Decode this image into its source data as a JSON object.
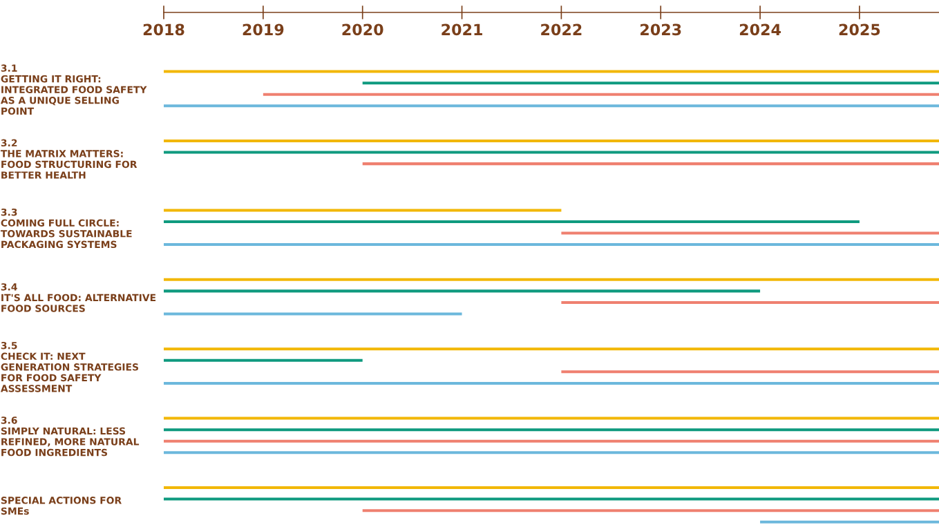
{
  "chart_data": {
    "type": "bar",
    "orientation": "horizontal",
    "categories": [
      "3.1\nGETTING IT RIGHT:\nINTEGRATED FOOD SAFETY\nAS A UNIQUE SELLING\nPOINT",
      "3.2\nTHE MATRIX MATTERS:\nFOOD STRUCTURING FOR\nBETTER HEALTH",
      "3.3\nCOMING FULL CIRCLE:\nTOWARDS SUSTAINABLE\nPACKAGING SYSTEMS",
      "3.4\nIT'S ALL FOOD: ALTERNATIVE\nFOOD SOURCES",
      "3.5\nCHECK IT: NEXT\nGENERATION STRATEGIES\nFOR FOOD SAFETY\nASSESSMENT",
      "3.6\nSIMPLY NATURAL: LESS\nREFINED, MORE NATURAL\nFOOD INGREDIENTS",
      "SPECIAL ACTIONS FOR\nSMEs"
    ],
    "series": [
      {
        "color": "#f2b705",
        "base": [
          2018,
          2018,
          2018,
          2018,
          2018,
          2018,
          2018
        ],
        "values": [
          7.8,
          7.8,
          4,
          7.8,
          7.8,
          7.8,
          7.8
        ]
      },
      {
        "color": "#0f9a7f",
        "base": [
          2020,
          2018,
          2018,
          2018,
          2018,
          2018,
          2018
        ],
        "values": [
          5.8,
          7.8,
          7,
          6,
          2,
          7.8,
          7.8
        ]
      },
      {
        "color": "#ef8070",
        "base": [
          2019,
          2020,
          2022,
          2022,
          2022,
          2018,
          2020
        ],
        "values": [
          6.8,
          5.8,
          3.8,
          3.8,
          3.8,
          7.8,
          5.8
        ]
      },
      {
        "color": "#6cb8dc",
        "base": [
          2018,
          null,
          2018,
          2018,
          2018,
          2018,
          2024
        ],
        "values": [
          7.8,
          null,
          7.8,
          3,
          7.8,
          7.8,
          1.8
        ]
      }
    ],
    "xlim": [
      2018,
      2025.8
    ],
    "xticks": [
      2018,
      2019,
      2020,
      2021,
      2022,
      2023,
      2024,
      2025
    ],
    "grid": false,
    "legend": false
  }
}
